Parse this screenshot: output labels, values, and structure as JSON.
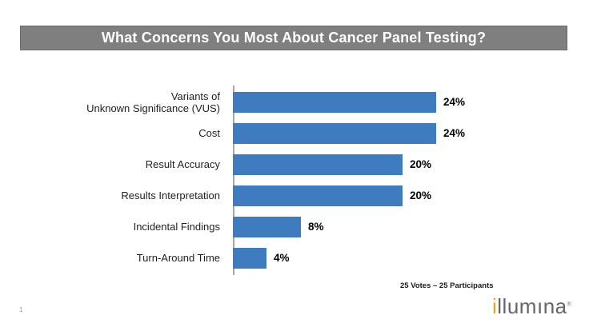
{
  "slide": {
    "title": "What Concerns You Most About Cancer Panel Testing?",
    "footnote": "25 Votes – 25 Participants",
    "page_number": "1",
    "logo": {
      "brand": "illumina",
      "part_orange": "i",
      "part_gray1": "llum",
      "part_dotless_i": "ı",
      "part_gray2": "na",
      "registered_mark": "®",
      "gray_color": "#63666a",
      "orange_color": "#f6a01a"
    },
    "colors": {
      "title_bar_background": "#7f7f7f",
      "title_text": "#ffffff",
      "bar_fill": "#3e7cbf",
      "axis_line": "#a6a6a6"
    }
  },
  "chart_data": {
    "type": "bar",
    "orientation": "horizontal",
    "title": "What Concerns You Most About Cancer Panel Testing?",
    "categories": [
      "Variants of\nUnknown Significance (VUS)",
      "Cost",
      "Result Accuracy",
      "Results Interpretation",
      "Incidental Findings",
      "Turn-Around Time"
    ],
    "values": [
      24,
      24,
      20,
      20,
      8,
      4
    ],
    "value_labels": [
      "24%",
      "24%",
      "20%",
      "20%",
      "8%",
      "4%"
    ],
    "unit": "percent",
    "xlabel": "",
    "ylabel": "",
    "xlim": [
      0,
      26
    ],
    "grid": false,
    "legend": false,
    "data_labels": "outside-end",
    "annotation": "25 Votes – 25 Participants",
    "bar_color": "#3e7cbf"
  }
}
